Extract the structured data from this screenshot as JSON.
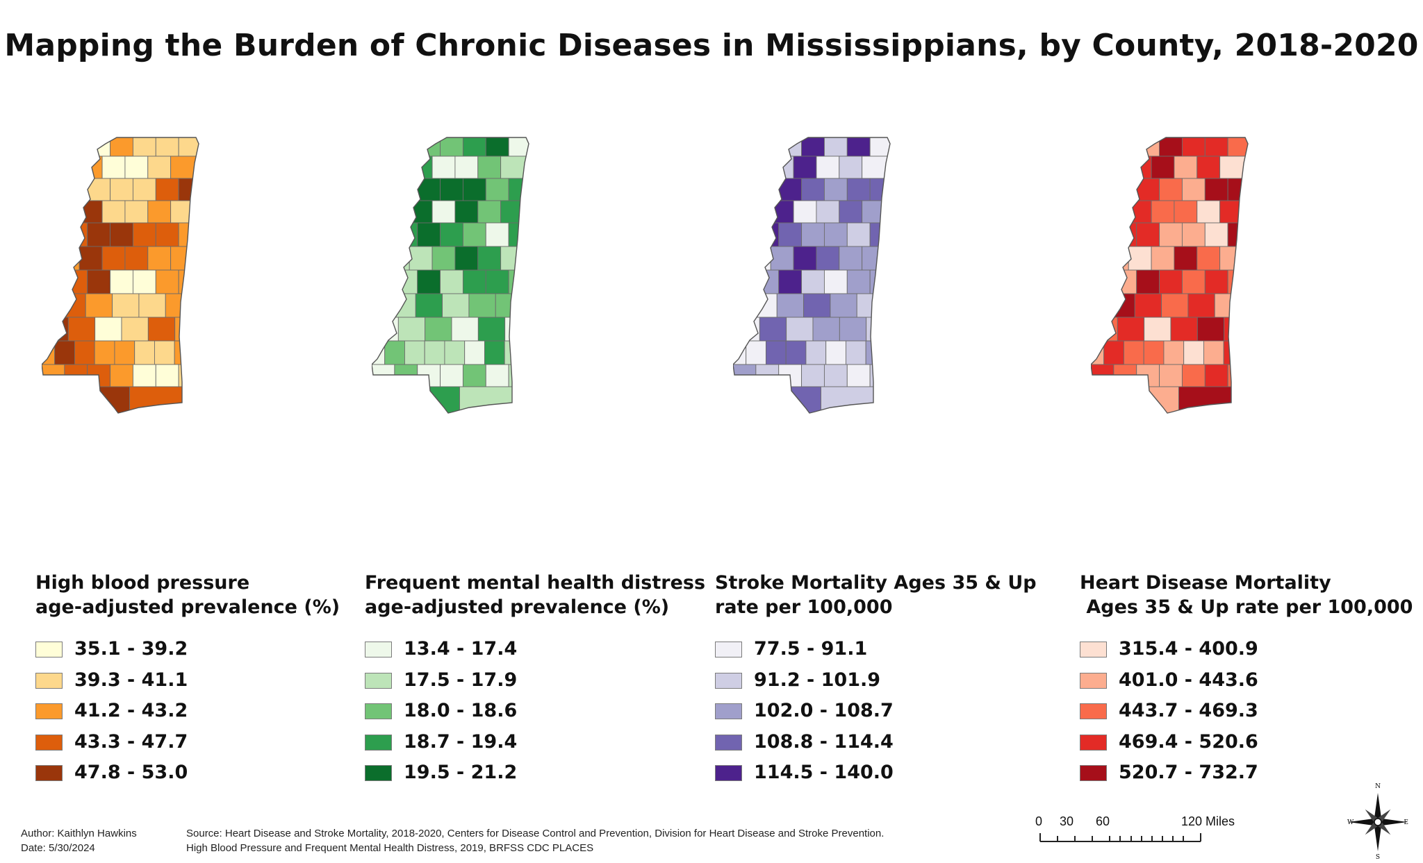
{
  "title": "Mapping the Burden of Chronic Diseases in Mississippians, by County, 2018-2020",
  "maps": [
    {
      "legend_title_line1": "High blood pressure",
      "legend_title_line2": "age-adjusted prevalence (%)",
      "ramp": [
        "#fffed8",
        "#fdd88c",
        "#fb9a2c",
        "#dd5e0c",
        "#9a360b"
      ],
      "ranges": [
        "35.1 - 39.2",
        "39.3 - 41.1",
        "41.2 - 43.2",
        "43.3 - 47.7",
        "47.8 - 53.0"
      ]
    },
    {
      "legend_title_line1": "Frequent mental health distress",
      "legend_title_line2": "age-adjusted prevalence (%)",
      "ramp": [
        "#eef8ea",
        "#bde4b8",
        "#72c476",
        "#2d9e4e",
        "#0b6e2c"
      ],
      "ranges": [
        "13.4 - 17.4",
        "17.5 - 17.9",
        "18.0 - 18.6",
        "18.7 - 19.4",
        "19.5 - 21.2"
      ]
    },
    {
      "legend_title_line1": "Stroke Mortality Ages 35 & Up",
      "legend_title_line2": "rate per 100,000",
      "ramp": [
        "#f1f0f6",
        "#cfcee4",
        "#a09fcb",
        "#7164b0",
        "#4d228c"
      ],
      "ranges": [
        "77.5 - 91.1",
        "91.2 - 101.9",
        "102.0 - 108.7",
        "108.8 - 114.4",
        "114.5 - 140.0"
      ]
    },
    {
      "legend_title_line1": "Heart Disease Mortality",
      "legend_title_line2": " Ages 35 & Up rate per 100,000",
      "ramp": [
        "#fde0d2",
        "#fcad8f",
        "#f96b4b",
        "#e32b26",
        "#a60f1a"
      ],
      "ranges": [
        "315.4 - 400.9",
        "401.0 - 443.6",
        "443.7 - 469.3",
        "469.4 - 520.6",
        "520.7 - 732.7"
      ]
    }
  ],
  "footer": {
    "author": "Author: Kaithlyn Hawkins",
    "date": "Date: 5/30/2024",
    "source_line1": "Source: Heart Disease and Stroke Mortality, 2018-2020, Centers for Disease Control and Prevention, Division for Heart Disease and Stroke Prevention.",
    "source_line2": "High Blood Pressure and Frequent Mental Health Distress, 2019, BRFSS CDC PLACES"
  },
  "scale": {
    "labels": [
      "0",
      "30",
      "60",
      "120 Miles"
    ]
  },
  "compass": {
    "n": "N",
    "s": "S",
    "e": "E",
    "w": "W"
  },
  "county_classes": [
    [
      2,
      1,
      0,
      2,
      1,
      1,
      1,
      0,
      3,
      2,
      0,
      0,
      1,
      2,
      3,
      2,
      1,
      1,
      1,
      3,
      4,
      3,
      2,
      4,
      1,
      1,
      2,
      1,
      4,
      3,
      4,
      4,
      3,
      3,
      2,
      0,
      2,
      4,
      3,
      3,
      2,
      2,
      3,
      3,
      4,
      0,
      0,
      2,
      2,
      2,
      3,
      2,
      1,
      1,
      2,
      4,
      3,
      0,
      1,
      3,
      2,
      2,
      4,
      3,
      2,
      2,
      1,
      1,
      2,
      2,
      3,
      3,
      2,
      0,
      0,
      1,
      1,
      4,
      3,
      0,
      1,
      0
    ],
    [
      1,
      0,
      2,
      2,
      3,
      4,
      0,
      1,
      2,
      3,
      0,
      0,
      2,
      1,
      1,
      0,
      4,
      4,
      4,
      2,
      3,
      2,
      1,
      4,
      0,
      4,
      2,
      3,
      4,
      3,
      4,
      3,
      2,
      0,
      3,
      2,
      1,
      1,
      2,
      4,
      3,
      1,
      0,
      1,
      4,
      1,
      3,
      3,
      2,
      0,
      1,
      3,
      1,
      2,
      2,
      0,
      1,
      2,
      0,
      3,
      0,
      0,
      2,
      1,
      1,
      1,
      0,
      3,
      1,
      0,
      2,
      0,
      0,
      2,
      0,
      1,
      0,
      3,
      1,
      0,
      2,
      0
    ],
    [
      0,
      0,
      1,
      4,
      1,
      4,
      0,
      1,
      0,
      1,
      4,
      0,
      1,
      0,
      3,
      2,
      4,
      3,
      2,
      3,
      3,
      4,
      3,
      4,
      0,
      1,
      3,
      2,
      4,
      4,
      3,
      2,
      2,
      1,
      3,
      3,
      0,
      2,
      4,
      3,
      2,
      2,
      1,
      2,
      4,
      1,
      0,
      2,
      2,
      1,
      0,
      2,
      3,
      2,
      1,
      0,
      3,
      1,
      2,
      2,
      1,
      0,
      0,
      3,
      3,
      1,
      0,
      1,
      2,
      2,
      1,
      0,
      1,
      1,
      0,
      1,
      0,
      3,
      1,
      0,
      1,
      0
    ],
    [
      4,
      3,
      1,
      4,
      3,
      3,
      2,
      1,
      4,
      3,
      4,
      1,
      3,
      0,
      4,
      3,
      3,
      2,
      1,
      4,
      4,
      3,
      1,
      3,
      2,
      2,
      0,
      3,
      4,
      3,
      3,
      1,
      1,
      0,
      4,
      2,
      1,
      0,
      1,
      4,
      2,
      1,
      0,
      1,
      4,
      3,
      2,
      3,
      2,
      3,
      4,
      3,
      2,
      3,
      1,
      2,
      3,
      0,
      3,
      4,
      3,
      1,
      3,
      2,
      2,
      1,
      0,
      1,
      3,
      3,
      2,
      1,
      1,
      2,
      3,
      2,
      1,
      1,
      4,
      3,
      1,
      0
    ]
  ]
}
